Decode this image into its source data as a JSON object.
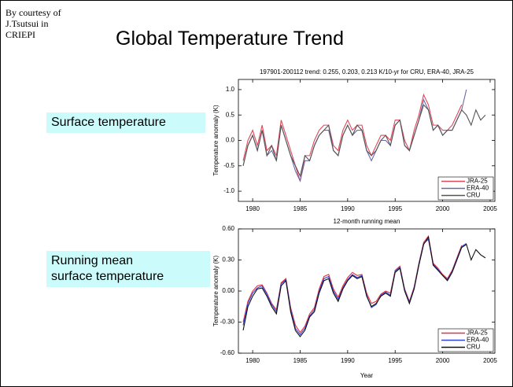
{
  "slide": {
    "credit": [
      "By courtesy of",
      "J.Tsutsui in",
      "CRIEPI"
    ],
    "title": "Global Temperature Trend",
    "label_top": "Surface temperature",
    "label_bottom": [
      "Running mean",
      "surface temperature"
    ]
  },
  "chart_data": [
    {
      "type": "line",
      "title": "197901-200112 trend: 0.255, 0.203, 0.213 K/10-yr for CRU, ERA-40, JRA-25",
      "y_label": "Temperature anomaly (K)",
      "x": [
        1979,
        1979.5,
        1980,
        1980.5,
        1981,
        1981.5,
        1982,
        1982.5,
        1983,
        1983.5,
        1984,
        1984.5,
        1985,
        1985.5,
        1986,
        1986.5,
        1987,
        1987.5,
        1988,
        1988.5,
        1989,
        1989.5,
        1990,
        1990.5,
        1991,
        1991.5,
        1992,
        1992.5,
        1993,
        1993.5,
        1994,
        1994.5,
        1995,
        1995.5,
        1996,
        1996.5,
        1997,
        1997.5,
        1998,
        1998.5,
        1999,
        1999.5,
        2000,
        2000.5,
        2001,
        2001.5,
        2002,
        2002.5,
        2003,
        2003.5,
        2004,
        2004.5
      ],
      "xlim": [
        1978.5,
        2005.5
      ],
      "xticks": [
        1980,
        1985,
        1990,
        1995,
        2000,
        2005
      ],
      "ylim": [
        -1.2,
        1.2
      ],
      "yticks": [
        {
          "value": -1,
          "label": "-1.0"
        },
        {
          "value": -0.5,
          "label": "-0.5"
        },
        {
          "value": 0,
          "label": "0.0"
        },
        {
          "value": 0.5,
          "label": "0.5"
        },
        {
          "value": 1,
          "label": "1.0"
        }
      ],
      "legend": "lower right",
      "series": [
        {
          "name": "JRA-25",
          "color": "#e0485a",
          "values": [
            -0.4,
            0.0,
            0.2,
            -0.1,
            0.3,
            -0.2,
            -0.1,
            -0.3,
            0.4,
            0.1,
            -0.2,
            -0.5,
            -0.8,
            -0.3,
            -0.3,
            0.0,
            0.2,
            0.3,
            0.3,
            -0.1,
            -0.2,
            0.2,
            0.4,
            0.2,
            0.3,
            0.3,
            -0.1,
            -0.3,
            -0.1,
            0.1,
            0.1,
            0.0,
            0.4,
            0.4,
            0.0,
            -0.2,
            0.2,
            0.5,
            0.9,
            0.7,
            0.3,
            0.3,
            0.2,
            0.2,
            0.3,
            0.5,
            0.7,
            null,
            null,
            null,
            null,
            null
          ]
        },
        {
          "name": "ERA-40",
          "color": "#6a6aa8",
          "values": [
            -0.5,
            -0.1,
            0.1,
            -0.2,
            0.2,
            -0.3,
            -0.2,
            -0.4,
            0.3,
            0.0,
            -0.3,
            -0.6,
            -0.8,
            -0.4,
            -0.4,
            -0.1,
            0.1,
            0.2,
            0.2,
            -0.2,
            -0.3,
            0.1,
            0.3,
            0.1,
            0.2,
            0.2,
            -0.2,
            -0.4,
            -0.2,
            0.0,
            0.0,
            -0.1,
            0.3,
            0.4,
            -0.1,
            -0.2,
            0.1,
            0.4,
            0.8,
            0.6,
            0.2,
            0.3,
            0.1,
            0.2,
            0.2,
            0.4,
            0.6,
            1.0,
            null,
            null,
            null,
            null
          ]
        },
        {
          "name": "CRU",
          "color": "#555555",
          "values": [
            -0.5,
            -0.1,
            0.1,
            -0.2,
            0.2,
            -0.3,
            -0.1,
            -0.4,
            0.3,
            0.0,
            -0.3,
            -0.5,
            -0.7,
            -0.3,
            -0.4,
            -0.1,
            0.1,
            0.2,
            0.3,
            -0.2,
            -0.3,
            0.1,
            0.3,
            0.1,
            0.3,
            0.2,
            -0.2,
            -0.3,
            -0.2,
            0.0,
            0.1,
            -0.1,
            0.3,
            0.4,
            -0.1,
            -0.2,
            0.1,
            0.4,
            0.7,
            0.6,
            0.2,
            0.3,
            0.1,
            0.2,
            0.2,
            0.4,
            0.6,
            0.5,
            0.3,
            0.6,
            0.4,
            0.5
          ]
        }
      ]
    },
    {
      "type": "line",
      "title": "12-month running mean",
      "y_label": "Temperature anomaly (K)",
      "x_label": "Year",
      "x": [
        1979,
        1979.5,
        1980,
        1980.5,
        1981,
        1981.5,
        1982,
        1982.5,
        1983,
        1983.5,
        1984,
        1984.5,
        1985,
        1985.5,
        1986,
        1986.5,
        1987,
        1987.5,
        1988,
        1988.5,
        1989,
        1989.5,
        1990,
        1990.5,
        1991,
        1991.5,
        1992,
        1992.5,
        1993,
        1993.5,
        1994,
        1994.5,
        1995,
        1995.5,
        1996,
        1996.5,
        1997,
        1997.5,
        1998,
        1998.5,
        1999,
        1999.5,
        2000,
        2000.5,
        2001,
        2001.5,
        2002,
        2002.5,
        2003,
        2003.5,
        2004,
        2004.5
      ],
      "xlim": [
        1978.5,
        2005.5
      ],
      "xticks": [
        1980,
        1985,
        1990,
        1995,
        2000,
        2005
      ],
      "ylim": [
        -0.6,
        0.6
      ],
      "yticks": [
        {
          "value": -0.6,
          "label": "-0.60"
        },
        {
          "value": -0.3,
          "label": "-0.30"
        },
        {
          "value": 0,
          "label": "0.00"
        },
        {
          "value": 0.3,
          "label": "0.30"
        },
        {
          "value": 0.6,
          "label": "0.60"
        }
      ],
      "legend": "lower right",
      "series": [
        {
          "name": "JRA-25",
          "color": "#e8303a",
          "values": [
            -0.3,
            -0.1,
            0.0,
            0.05,
            0.06,
            -0.02,
            -0.12,
            -0.18,
            0.08,
            0.12,
            -0.16,
            -0.33,
            -0.4,
            -0.34,
            -0.22,
            -0.16,
            0.02,
            0.14,
            0.16,
            0.02,
            -0.06,
            0.05,
            0.13,
            0.18,
            0.15,
            0.16,
            -0.02,
            -0.12,
            -0.1,
            -0.03,
            0.0,
            -0.02,
            0.2,
            0.24,
            0.02,
            -0.1,
            0.04,
            0.27,
            0.47,
            0.53,
            0.27,
            0.22,
            0.16,
            0.12,
            0.2,
            0.32,
            0.44,
            null,
            null,
            null,
            null,
            null
          ]
        },
        {
          "name": "ERA-40",
          "color": "#3344dd",
          "values": [
            -0.33,
            -0.12,
            -0.02,
            0.03,
            0.05,
            -0.03,
            -0.13,
            -0.2,
            0.07,
            0.11,
            -0.18,
            -0.36,
            -0.42,
            -0.36,
            -0.24,
            -0.18,
            0.0,
            0.12,
            0.14,
            0.0,
            -0.08,
            0.03,
            0.11,
            0.16,
            0.13,
            0.15,
            -0.04,
            -0.16,
            -0.13,
            -0.04,
            -0.01,
            -0.04,
            0.19,
            0.23,
            0.01,
            -0.11,
            0.03,
            0.26,
            0.46,
            0.5,
            0.26,
            0.21,
            0.15,
            0.11,
            0.19,
            0.31,
            0.43,
            0.46,
            null,
            null,
            null,
            null
          ]
        },
        {
          "name": "CRU",
          "color": "#111111",
          "values": [
            -0.38,
            -0.15,
            -0.05,
            0.02,
            0.03,
            -0.05,
            -0.15,
            -0.22,
            0.05,
            0.1,
            -0.2,
            -0.38,
            -0.44,
            -0.38,
            -0.25,
            -0.2,
            -0.02,
            0.1,
            0.12,
            -0.02,
            -0.1,
            0.02,
            0.1,
            0.15,
            0.12,
            0.14,
            -0.05,
            -0.15,
            -0.12,
            -0.05,
            -0.02,
            -0.05,
            0.18,
            0.22,
            0.0,
            -0.12,
            0.02,
            0.25,
            0.45,
            0.52,
            0.25,
            0.2,
            0.15,
            0.1,
            0.18,
            0.3,
            0.42,
            0.45,
            0.3,
            0.4,
            0.35,
            0.32
          ]
        }
      ]
    }
  ]
}
